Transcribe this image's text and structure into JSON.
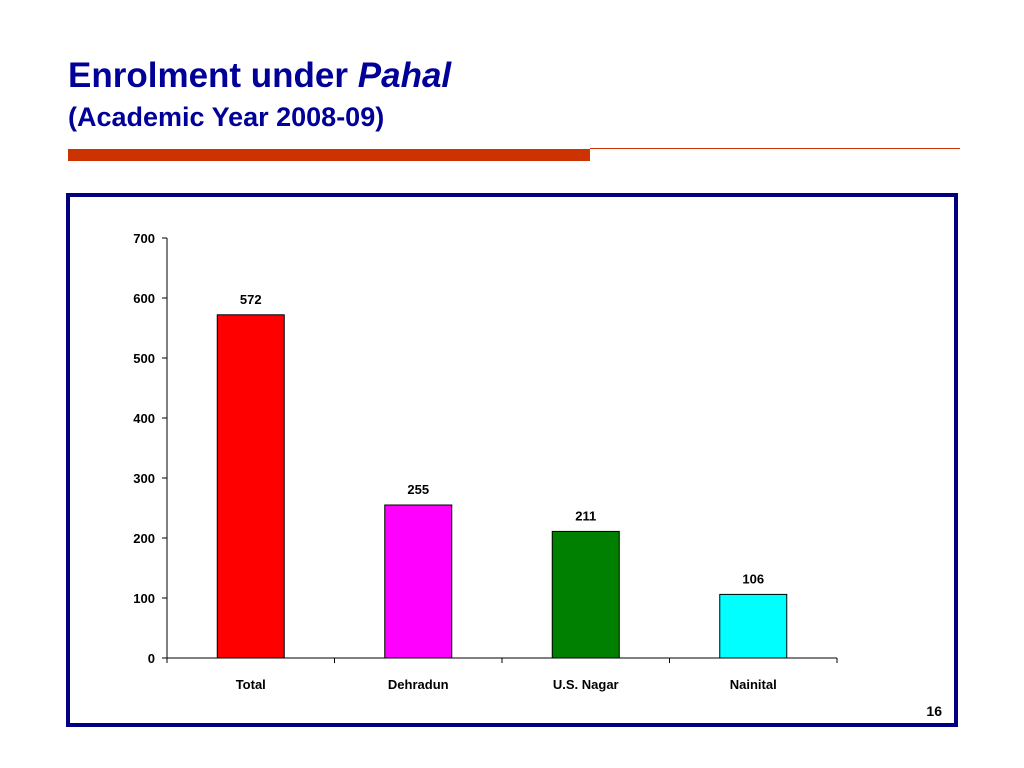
{
  "slide": {
    "title_main": "Enrolment under",
    "title_emphasis": "Pahal",
    "subtitle": "(Academic Year 2008-09)",
    "page_number": "16"
  },
  "colors": {
    "title": "#000099",
    "rule": "#cc3300",
    "frame": "#000080"
  },
  "chart_data": {
    "type": "bar",
    "title": "",
    "xlabel": "",
    "ylabel": "",
    "categories": [
      "Total",
      "Dehradun",
      "U.S. Nagar",
      "Nainital"
    ],
    "values": [
      572,
      255,
      211,
      106
    ],
    "data_labels": [
      "572",
      "255",
      "211",
      "106"
    ],
    "bar_colors": [
      "#ff0000",
      "#ff00ff",
      "#008000",
      "#00ffff"
    ],
    "ylim": [
      0,
      700
    ],
    "yticks": [
      0,
      100,
      200,
      300,
      400,
      500,
      600,
      700
    ],
    "grid": false,
    "legend": "none"
  }
}
